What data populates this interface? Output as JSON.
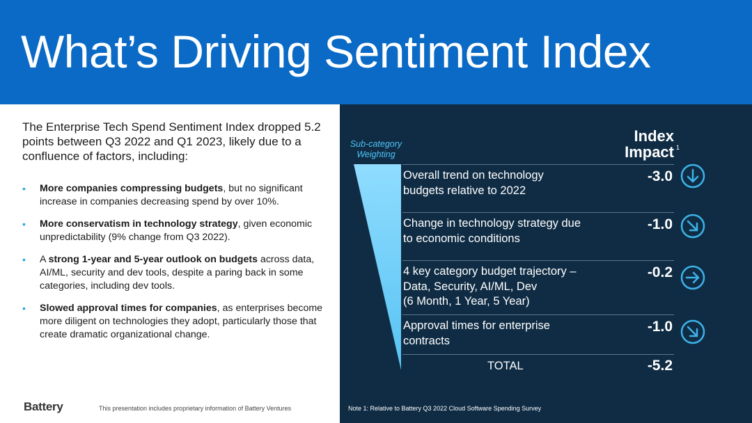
{
  "slide": {
    "title": "What’s Driving Sentiment Index",
    "intro": "The Enterprise Tech Spend Sentiment Index dropped 5.2 points between Q3 2022 and Q1 2023, likely due to a confluence of factors, including:",
    "bullets": [
      {
        "bold": "More companies compressing budgets",
        "rest": ", but no significant increase in companies decreasing spend by over 10%."
      },
      {
        "bold": "More conservatism in technology strategy",
        "rest": ", given economic unpredictability (9% change from Q3 2022)."
      },
      {
        "pre": "A ",
        "bold": "strong 1-year and 5-year outlook on budgets",
        "rest": " across data, AI/ML, security and dev tools, despite a paring back in some categories, including dev tools."
      },
      {
        "bold": "Slowed approval times for companies",
        "rest": ", as enterprises become more diligent on technologies they adopt, particularly those that create dramatic organizational change."
      }
    ],
    "logo_text": "Battery",
    "confidential_note": "This presentation includes proprietary information of Battery Ventures"
  },
  "panel": {
    "weighting_label_1": "Sub-category",
    "weighting_label_2": "Weighting",
    "impact_header_1": "Index",
    "impact_header_2": "Impact",
    "impact_sup": "1",
    "rows": [
      {
        "label_1": "Overall trend on technology",
        "label_2": "budgets relative to 2022",
        "label_3": "",
        "value": "-3.0",
        "arrow": "arrow-down-icon"
      },
      {
        "label_1": "Change in technology strategy due",
        "label_2": "to economic conditions",
        "label_3": "",
        "value": "-1.0",
        "arrow": "arrow-down-right-icon"
      },
      {
        "label_1": "4 key category budget trajectory –",
        "label_2": "Data, Security, AI/ML, Dev",
        "label_3": "(6 Month, 1 Year, 5 Year)",
        "value": "-0.2",
        "arrow": "arrow-right-icon"
      },
      {
        "label_1": "Approval times for enterprise",
        "label_2": "contracts",
        "label_3": "",
        "value": "-1.0",
        "arrow": "arrow-down-right-icon"
      }
    ],
    "total_label": "TOTAL",
    "total_value": "-5.2",
    "note": "Note 1: Relative to Battery Q3 2022 Cloud Software Spending Survey"
  },
  "colors": {
    "header_blue": "#0a6ac5",
    "panel_navy": "#0f2c44",
    "accent_cyan": "#4fc3f7"
  }
}
